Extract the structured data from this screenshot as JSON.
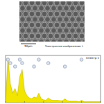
{
  "image": {
    "caption": "Электронное изображение 1",
    "scale_bar": "50µm"
  },
  "chart_data": {
    "type": "area",
    "title": "Спектр 1",
    "color": "#f2e600",
    "x": [
      0,
      0.25,
      0.5,
      0.75,
      1,
      1.25,
      1.5,
      1.75,
      2,
      2.25,
      2.5,
      2.75,
      3,
      3.25,
      3.5,
      3.75,
      4,
      4.25,
      4.5,
      4.75,
      5,
      5.25,
      5.5,
      5.75,
      6,
      6.25,
      6.5,
      6.75,
      7,
      7.25,
      7.5,
      7.75,
      8,
      8.25,
      8.5,
      8.75,
      9,
      9.25,
      9.5,
      9.75,
      10
    ],
    "values": [
      0,
      95,
      40,
      20,
      30,
      15,
      55,
      70,
      25,
      15,
      10,
      8,
      12,
      10,
      20,
      8,
      6,
      5,
      10,
      6,
      5,
      5,
      5,
      4,
      4,
      8,
      4,
      3,
      3,
      3,
      3,
      2,
      5,
      2,
      2,
      2,
      2,
      2,
      2,
      2,
      2
    ],
    "markers_x": [
      0.25,
      0.5,
      1,
      1.5,
      1.75,
      3,
      3.5,
      4.5,
      6.25,
      8
    ],
    "xlim": [
      0,
      10
    ],
    "ylim": [
      0,
      100
    ],
    "xticks": [
      0,
      2,
      4,
      6,
      8,
      10
    ],
    "tick_labels": false
  }
}
